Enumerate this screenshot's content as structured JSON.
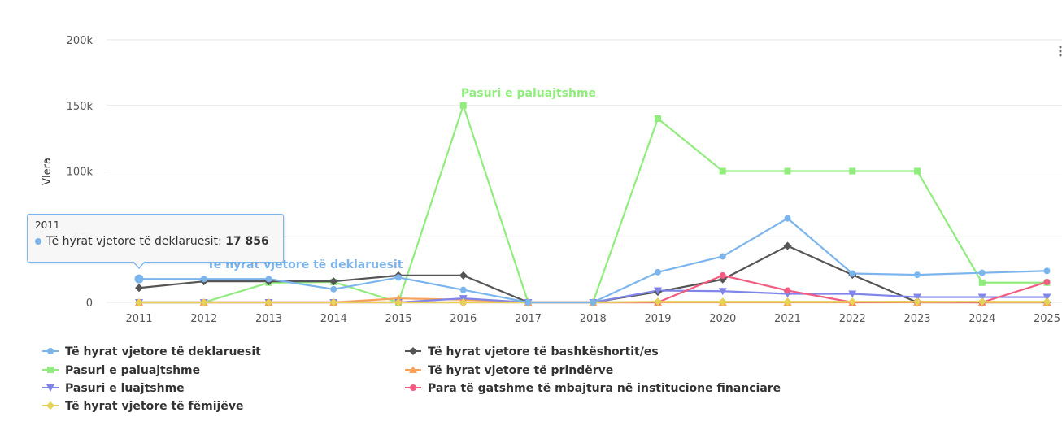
{
  "chart_data": {
    "type": "line",
    "ylabel": "Vlera",
    "xlabel": "",
    "ylim": [
      0,
      200000
    ],
    "y_ticks": [
      0,
      50000,
      100000,
      150000,
      200000
    ],
    "y_tick_labels": [
      "0",
      "50k",
      "100k",
      "150k",
      "200k"
    ],
    "grid": true,
    "legend_position": "bottom",
    "categories": [
      "2011",
      "2012",
      "2013",
      "2014",
      "2015",
      "2016",
      "2017",
      "2018",
      "2019",
      "2020",
      "2021",
      "2022",
      "2023",
      "2024",
      "2025"
    ],
    "series": [
      {
        "name": "Të hyrat vjetore të deklaruesit",
        "color": "#7cb5ec",
        "marker": "circle",
        "values": [
          17856,
          17800,
          17800,
          10000,
          19000,
          9500,
          0,
          0,
          23000,
          35000,
          64000,
          22000,
          21000,
          22500,
          24000
        ]
      },
      {
        "name": "Të hyrat vjetore të bashkëshortit/es",
        "color": "#555555",
        "marker": "diamond",
        "values": [
          11000,
          16000,
          16000,
          16000,
          20500,
          20500,
          0,
          0,
          8000,
          17500,
          43000,
          21000,
          0,
          0,
          0
        ]
      },
      {
        "name": "Pasuri e paluajtshme",
        "color": "#90ed7d",
        "marker": "square",
        "values": [
          0,
          0,
          15000,
          15500,
          0,
          150000,
          0,
          0,
          140000,
          100000,
          100000,
          100000,
          100000,
          15000,
          15000
        ]
      },
      {
        "name": "Të hyrat vjetore të prindërve",
        "color": "#f7a35c",
        "marker": "triangle",
        "values": [
          0,
          0,
          0,
          0,
          3000,
          2000,
          0,
          0,
          0,
          0,
          0,
          0,
          0,
          0,
          0
        ]
      },
      {
        "name": "Pasuri e luajtshme",
        "color": "#8085e9",
        "marker": "triangle-down",
        "values": [
          0,
          0,
          0,
          0,
          0,
          3000,
          0,
          0,
          9000,
          8500,
          6500,
          6500,
          4000,
          4000,
          4000
        ]
      },
      {
        "name": "Para të gatshme të mbajtura në institucione financiare",
        "color": "#f15c80",
        "marker": "circle",
        "values": [
          0,
          0,
          0,
          0,
          0,
          0,
          0,
          0,
          0,
          20500,
          9000,
          0,
          500,
          0,
          15500
        ]
      },
      {
        "name": "Të hyrat vjetore të fëmijëve",
        "color": "#e4d354",
        "marker": "diamond",
        "values": [
          0,
          0,
          0,
          0,
          0,
          0,
          0,
          0,
          500,
          500,
          500,
          500,
          500,
          500,
          500
        ]
      }
    ],
    "series_labels": [
      {
        "text": "Pasuri e paluajtshme",
        "color": "#90ed7d"
      },
      {
        "text": "Të hyrat vjetore të deklaruesit",
        "color": "#7cb5ec"
      }
    ],
    "tooltip": {
      "header": "2011",
      "series_name": "Të hyrat vjetore të deklaruesit",
      "value_text": "17 856"
    }
  },
  "menu": {
    "icon": "hamburger-menu-icon"
  }
}
